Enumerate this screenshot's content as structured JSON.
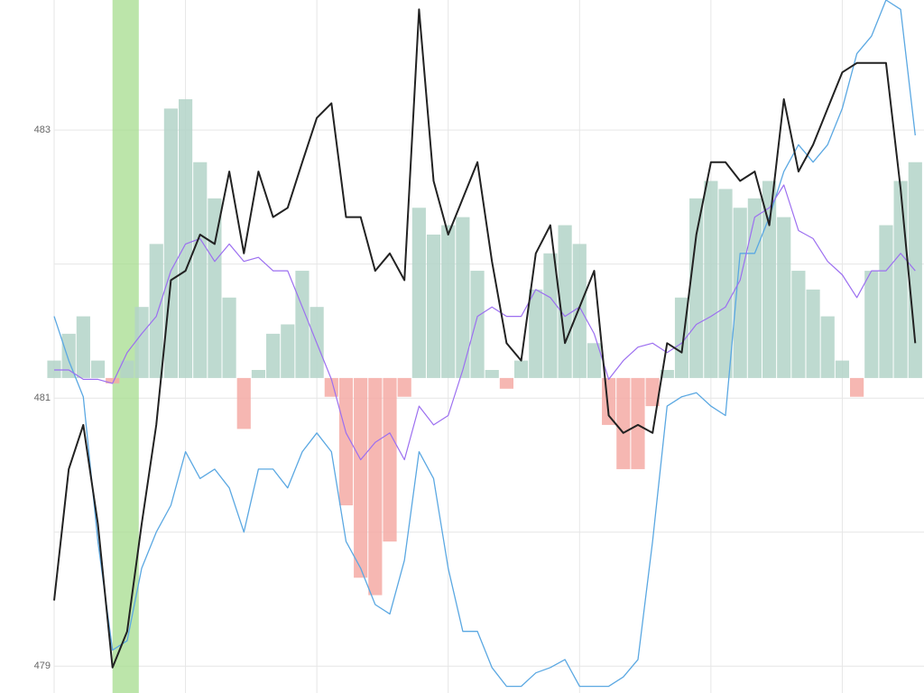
{
  "chart_data": {
    "type": "line",
    "x": [
      0,
      1,
      2,
      3,
      4,
      5,
      6,
      7,
      8,
      9,
      10,
      11,
      12,
      13,
      14,
      15,
      16,
      17,
      18,
      19,
      20,
      21,
      22,
      23,
      24,
      25,
      26,
      27,
      28,
      29,
      30,
      31,
      32,
      33,
      34,
      35,
      36,
      37,
      38,
      39,
      40,
      41,
      42,
      43,
      44,
      45,
      46,
      47,
      48,
      49,
      50,
      51,
      52,
      53,
      54,
      55,
      56,
      57,
      58,
      59
    ],
    "xlim": [
      0,
      59.6
    ],
    "x_grid": [
      0,
      9,
      18,
      27,
      36,
      45,
      54
    ],
    "ylim": [
      478.8,
      483.97
    ],
    "yticks": [
      479,
      481,
      483
    ],
    "y_grid": [
      479,
      480,
      481,
      482,
      483
    ],
    "grid": true,
    "highlight": {
      "x": [
        4,
        5.8
      ],
      "color": "#a6dc8e"
    },
    "histogram": {
      "base": 481.15,
      "up_color": "#b3d4c8",
      "down_color": "#f5aaa4",
      "values": [
        481.28,
        481.48,
        481.61,
        481.28,
        481.11,
        481.28,
        481.68,
        482.15,
        483.16,
        483.23,
        482.76,
        482.49,
        481.75,
        480.77,
        481.21,
        481.48,
        481.55,
        481.95,
        481.68,
        481.01,
        480.2,
        479.66,
        479.53,
        479.93,
        481.01,
        482.42,
        482.22,
        482.29,
        482.35,
        481.95,
        481.21,
        481.07,
        481.28,
        481.81,
        482.08,
        482.29,
        482.15,
        481.41,
        480.8,
        480.47,
        480.47,
        480.94,
        481.21,
        481.75,
        482.49,
        482.62,
        482.56,
        482.42,
        482.49,
        482.62,
        482.35,
        481.95,
        481.81,
        481.61,
        481.28,
        481.01,
        481.95,
        482.29,
        482.62,
        482.76
      ]
    },
    "series": [
      {
        "color": "#5ba8e2",
        "width": 1.3,
        "values": [
          481.61,
          481.28,
          481.01,
          479.93,
          479.12,
          479.19,
          479.73,
          480.0,
          480.2,
          480.6,
          480.4,
          480.47,
          480.33,
          480.0,
          480.47,
          480.47,
          480.33,
          480.6,
          480.74,
          480.6,
          479.93,
          479.73,
          479.46,
          479.39,
          479.79,
          480.6,
          480.4,
          479.73,
          479.26,
          479.26,
          478.99,
          478.85,
          478.85,
          478.95,
          478.99,
          479.05,
          478.85,
          478.85,
          478.85,
          478.92,
          479.05,
          479.93,
          480.94,
          481.01,
          481.04,
          480.94,
          480.87,
          482.08,
          482.08,
          482.35,
          482.69,
          482.89,
          482.76,
          482.89,
          483.16,
          483.57,
          483.7,
          483.97,
          483.9,
          482.96
        ]
      },
      {
        "color": "#9c6ff0",
        "width": 1.2,
        "values": [
          481.21,
          481.21,
          481.14,
          481.14,
          481.11,
          481.34,
          481.48,
          481.61,
          481.95,
          482.15,
          482.19,
          482.02,
          482.15,
          482.02,
          482.05,
          481.95,
          481.95,
          481.68,
          481.41,
          481.14,
          480.74,
          480.54,
          480.67,
          480.74,
          480.54,
          480.94,
          480.8,
          480.87,
          481.21,
          481.61,
          481.68,
          481.61,
          481.61,
          481.81,
          481.75,
          481.61,
          481.68,
          481.48,
          481.14,
          481.28,
          481.38,
          481.41,
          481.34,
          481.41,
          481.55,
          481.61,
          481.68,
          481.88,
          482.35,
          482.42,
          482.59,
          482.25,
          482.19,
          482.02,
          481.92,
          481.75,
          481.95,
          481.95,
          482.08,
          481.95
        ]
      },
      {
        "color": "#222222",
        "width": 2,
        "values": [
          479.49,
          480.47,
          480.8,
          480.06,
          478.99,
          479.26,
          480.06,
          480.8,
          481.88,
          481.95,
          482.22,
          482.15,
          482.69,
          482.08,
          482.69,
          482.35,
          482.42,
          482.76,
          483.09,
          483.2,
          482.35,
          482.35,
          481.95,
          482.08,
          481.88,
          483.9,
          482.62,
          482.22,
          482.49,
          482.76,
          482.02,
          481.41,
          481.28,
          482.08,
          482.29,
          481.41,
          481.68,
          481.95,
          480.87,
          480.74,
          480.8,
          480.74,
          481.41,
          481.34,
          482.22,
          482.76,
          482.76,
          482.62,
          482.69,
          482.29,
          483.23,
          482.69,
          482.89,
          483.16,
          483.43,
          483.5,
          483.5,
          483.5,
          482.56,
          481.41
        ]
      }
    ]
  }
}
